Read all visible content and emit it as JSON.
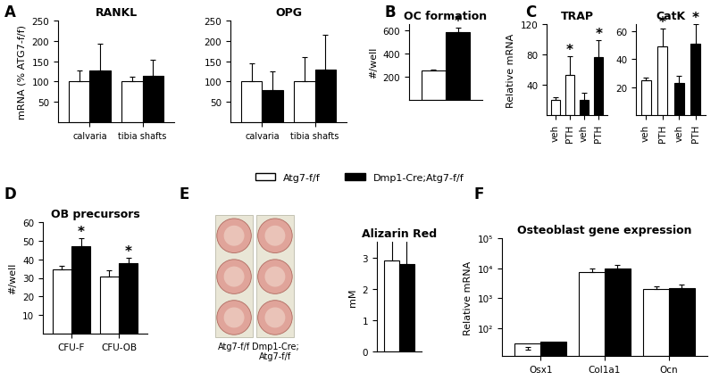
{
  "chart_data": [
    {
      "type": "bar",
      "panel": "A",
      "title": "RANKL",
      "ylabel": "mRNA (% ATG7-f/f)",
      "categories": [
        "calvaria",
        "tibia shafts"
      ],
      "ylim": [
        0,
        250
      ],
      "yticks": [
        50,
        100,
        150,
        200,
        250
      ],
      "series": [
        {
          "name": "Atg7-f/f",
          "color": "#ffffff",
          "values": [
            100,
            100
          ],
          "errors": [
            28,
            12
          ]
        },
        {
          "name": "Dmp1-Cre;Atg7-f/f",
          "color": "#000000",
          "values": [
            128,
            115
          ],
          "errors": [
            65,
            38
          ]
        }
      ]
    },
    {
      "type": "bar",
      "title": "OPG",
      "categories": [
        "calvaria",
        "tibia shafts"
      ],
      "ylim": [
        0,
        250
      ],
      "yticks": [
        50,
        100,
        150,
        200,
        250
      ],
      "series": [
        {
          "name": "Atg7-f/f",
          "color": "#ffffff",
          "values": [
            100,
            100
          ],
          "errors": [
            45,
            60
          ]
        },
        {
          "name": "Dmp1-Cre;Atg7-f/f",
          "color": "#000000",
          "values": [
            80,
            130
          ],
          "errors": [
            45,
            85
          ]
        }
      ]
    },
    {
      "type": "bar",
      "panel": "B",
      "title": "OC formation",
      "ylabel": "#/well",
      "categories": [
        null
      ],
      "ylim": [
        0,
        650
      ],
      "yticks": [
        200,
        400,
        600
      ],
      "series": [
        {
          "name": "Atg7-f/f",
          "color": "#ffffff",
          "values": [
            250
          ],
          "errors": [
            10
          ],
          "marks": [
            null
          ]
        },
        {
          "name": "Dmp1-Cre;Atg7-f/f",
          "color": "#000000",
          "values": [
            580
          ],
          "errors": [
            40
          ],
          "marks": [
            "*"
          ]
        }
      ]
    },
    {
      "type": "bar",
      "panel": "C",
      "title": "TRAP",
      "ylabel": "Relative mRNA",
      "categories": [
        "veh",
        "PTH",
        "veh",
        "PTH"
      ],
      "ylim": [
        0,
        120
      ],
      "yticks": [
        40,
        80,
        120
      ],
      "series": [
        {
          "name": "Atg7-f/f",
          "color": "#ffffff",
          "values": [
            20,
            53,
            null,
            null
          ],
          "errors": [
            3,
            25,
            null,
            null
          ],
          "marks": [
            null,
            "*",
            null,
            null
          ]
        },
        {
          "name": "Dmp1-Cre;Atg7-f/f",
          "color": "#000000",
          "values": [
            null,
            null,
            20,
            76
          ],
          "errors": [
            null,
            null,
            9,
            23
          ],
          "marks": [
            null,
            null,
            null,
            "*"
          ]
        }
      ]
    },
    {
      "type": "bar",
      "title": "CatK",
      "categories": [
        "veh",
        "PTH",
        "veh",
        "PTH"
      ],
      "ylim": [
        0,
        65
      ],
      "yticks": [
        20,
        40,
        60
      ],
      "series": [
        {
          "name": "Atg7-f/f",
          "color": "#ffffff",
          "values": [
            25,
            49,
            null,
            null
          ],
          "errors": [
            2,
            13,
            null,
            null
          ],
          "marks": [
            null,
            "*",
            null,
            null
          ]
        },
        {
          "name": "Dmp1-Cre;Atg7-f/f",
          "color": "#000000",
          "values": [
            null,
            null,
            23,
            51
          ],
          "errors": [
            null,
            null,
            5,
            14
          ],
          "marks": [
            null,
            null,
            null,
            "*"
          ]
        }
      ]
    },
    {
      "type": "bar",
      "panel": "D",
      "title": "OB precursors",
      "ylabel": "#/well",
      "categories": [
        "CFU-F",
        "CFU-OB"
      ],
      "ylim": [
        0,
        60
      ],
      "yticks": [
        10,
        20,
        30,
        40,
        50,
        60
      ],
      "series": [
        {
          "name": "Atg7-f/f",
          "color": "#ffffff",
          "values": [
            34.5,
            30.5
          ],
          "errors": [
            2,
            3.5
          ],
          "marks": [
            null,
            null
          ]
        },
        {
          "name": "Dmp1-Cre;Atg7-f/f",
          "color": "#000000",
          "values": [
            47,
            38
          ],
          "errors": [
            4.5,
            3
          ],
          "marks": [
            "*",
            "*"
          ]
        }
      ]
    },
    {
      "type": "image",
      "panel": "E",
      "captions": [
        "Atg7-f/f",
        "Dmp1-Cre;\nAtg7-f/f"
      ]
    },
    {
      "type": "bar",
      "title": "Alizarin Red",
      "ylabel": "mM",
      "categories": [
        null
      ],
      "ylim": [
        0,
        3.5
      ],
      "yticks": [
        0,
        1,
        2,
        3
      ],
      "series": [
        {
          "name": "Atg7-f/f",
          "color": "#ffffff",
          "values": [
            2.9
          ],
          "errors": [
            0.65
          ]
        },
        {
          "name": "Dmp1-Cre;Atg7-f/f",
          "color": "#000000",
          "values": [
            2.8
          ],
          "errors": [
            0.75
          ]
        }
      ]
    },
    {
      "type": "bar",
      "panel": "F",
      "title": "Osteoblast gene expression",
      "ylabel": "Relative mRNA",
      "log": "y",
      "categories": [
        "Osx1",
        "Col1a1",
        "Ocn"
      ],
      "ylim": [
        12,
        100000
      ],
      "yticks": [
        {
          "value": 100,
          "label": "10²"
        },
        {
          "value": 1000,
          "label": "10³"
        },
        {
          "value": 10000,
          "label": "10⁴"
        },
        {
          "value": 100000,
          "label": "10⁵"
        }
      ],
      "series": [
        {
          "name": "Atg7-f/f",
          "color": "#ffffff",
          "values": [
            20,
            7500,
            2000
          ],
          "errors": [
            3,
            2000,
            500
          ]
        },
        {
          "name": "Dmp1-Cre;Atg7-f/f",
          "color": "#000000",
          "values": [
            23,
            10000,
            2200
          ],
          "errors": [
            3,
            3000,
            700
          ]
        }
      ]
    }
  ]
}
